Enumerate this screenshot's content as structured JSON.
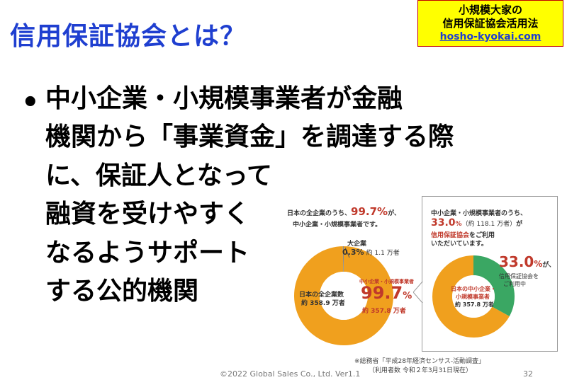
{
  "title": "信用保証協会とは？",
  "logo": {
    "line1": "小規模大家の",
    "line2": "信用保証協会活用法",
    "url": "hosho-kyokai.com"
  },
  "bullet": {
    "lines": [
      "中小企業・小規模事業者が金融",
      "機関から「事業資金」を調達する際",
      "に、保証人となって",
      "融資を受けやすく",
      "なるようサポート",
      "する公的機関"
    ]
  },
  "left_chart": {
    "intro_pre": "日本の全企業のうち、",
    "intro_pct": "99.7%",
    "intro_post": "が、",
    "intro_line2": "中小企業・小規模事業者です。",
    "large_label": "大企業",
    "large_pct": "0.3%",
    "large_count": "約 1.1 万者",
    "center_label": "日本の全企業数",
    "center_count": "約 358.9 万者",
    "sme_label": "中小企業・小規模事業者",
    "sme_pct": "99.7",
    "sme_pct_unit": "%",
    "sme_count": "約 357.8 万者",
    "sme_fraction": 0.997,
    "ring_color": "#f0a01e"
  },
  "right_chart": {
    "intro_line1": "中小企業・小規模事業者のうち、",
    "intro_pct": "33.0",
    "intro_pct_unit": "%",
    "intro_count": "（約 118.1 万者）",
    "intro_ga": "が",
    "intro_line3": "信用保証協会",
    "intro_line3b": "をご利用",
    "intro_line4": "いただいています。",
    "center_label1": "日本の中小企業・",
    "center_label2": "小規模事業者",
    "center_count": "約 357.8 万者",
    "use_pct": "33.0",
    "use_pct_unit": "%",
    "use_ga": "が、",
    "use_label1": "信用保証協会を",
    "use_label2": "ご利用中",
    "use_fraction": 0.33,
    "ring_color": "#f0a01e",
    "use_color": "#3aa763"
  },
  "note": {
    "line1": "※総務省「平成28年経済センサス-活動調査」",
    "line2": "（利用者数 令和２年3月31日現在）"
  },
  "footer": {
    "copyright": "©2022 Global Sales Co., Ltd. Ver1.1",
    "page": "32"
  }
}
